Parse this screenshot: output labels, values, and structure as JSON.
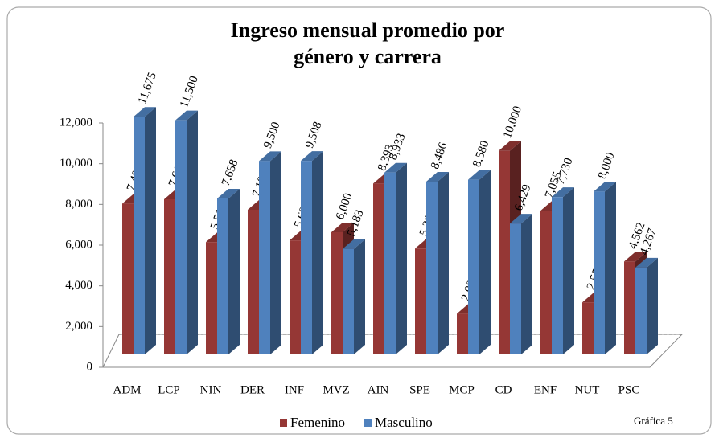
{
  "chart_data": {
    "type": "bar3d",
    "title": [
      "Ingreso mensual promedio por",
      "género y carrera"
    ],
    "categories": [
      "ADM",
      "LCP",
      "NIN",
      "DER",
      "INF",
      "MVZ",
      "AIN",
      "SPE",
      "MCP",
      "CD",
      "ENF",
      "NUT",
      "PSC"
    ],
    "series": [
      {
        "name": "Femenino",
        "color": "#953735",
        "values": [
          7405,
          7619,
          5517,
          7107,
          5600,
          6000,
          8393,
          5200,
          2000,
          10000,
          7055,
          2558,
          4562
        ],
        "value_labels": [
          "7,405",
          "7,619",
          "5,517",
          "7,107",
          "5,600",
          "6,000",
          "8,393",
          "5,200",
          "2,000",
          "10,000",
          "7,055",
          "2,558",
          "4,562"
        ]
      },
      {
        "name": "Masculino",
        "color": "#4f81bd",
        "values": [
          11675,
          11500,
          7658,
          9500,
          9508,
          5183,
          8933,
          8486,
          8580,
          6429,
          7730,
          8000,
          4267
        ],
        "value_labels": [
          "11,675",
          "11,500",
          "7,658",
          "9,500",
          "9,508",
          "5,183",
          "8,933",
          "8,486",
          "8,580",
          "6,429",
          "7,730",
          "8,000",
          "4,267"
        ]
      }
    ],
    "ylim": [
      0,
      12000
    ],
    "yticks": [
      0,
      {
        "value": 2000,
        "label": "2,000"
      },
      {
        "value": 4000,
        "label": "4,000"
      },
      {
        "value": 6000,
        "label": "6,000"
      },
      {
        "value": 8000,
        "label": "8,000"
      },
      {
        "value": 10000,
        "label": "10,000"
      },
      {
        "value": 12000,
        "label": "12,000"
      }
    ],
    "legend": "bottom",
    "annotation": "Gráfica 5"
  }
}
